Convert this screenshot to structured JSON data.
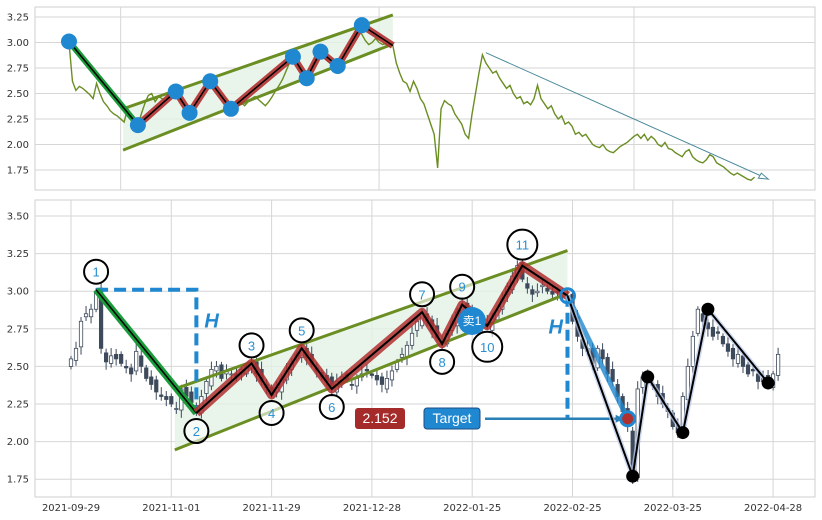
{
  "chart_data": [
    {
      "panel": "overview",
      "type": "line",
      "yticks": [
        1.75,
        2.0,
        2.25,
        2.5,
        2.75,
        3.0,
        3.25
      ],
      "ylim": [
        1.55,
        3.35
      ],
      "series_color": "#6b8e23",
      "pivot_color": "#1f88d0"
    },
    {
      "panel": "detail",
      "type": "candlestick",
      "yticks": [
        1.75,
        2.0,
        2.25,
        2.5,
        2.75,
        3.0,
        3.25,
        3.5
      ],
      "ylim": [
        1.65,
        3.6
      ],
      "xticks": [
        {
          "i": 0,
          "label": "2021-09-29"
        },
        {
          "i": 20,
          "label": "2021-11-01"
        },
        {
          "i": 40,
          "label": "2021-11-29"
        },
        {
          "i": 60,
          "label": "2021-12-28"
        },
        {
          "i": 80,
          "label": "2022-01-25"
        },
        {
          "i": 100,
          "label": "2022-02-25"
        },
        {
          "i": 120,
          "label": "2022-03-25"
        },
        {
          "i": 140,
          "label": "2022-04-28"
        }
      ],
      "candle_last_index": 141,
      "target_label": "Target",
      "target_value": "2.152",
      "sell_label": "卖1",
      "height_label": "H",
      "colors": {
        "down": "#3d4a5c",
        "up": "#ffffff",
        "channel": "#6b8e23",
        "zigzag": "#b03030",
        "impulse": "#1a9c3a",
        "accent": "#1f88d0",
        "value_box": "#a52a2a"
      }
    }
  ],
  "closes": [
    2.55,
    2.62,
    2.8,
    2.85,
    2.88,
    3.0,
    2.62,
    2.53,
    2.57,
    2.55,
    2.52,
    2.49,
    2.45,
    2.6,
    2.5,
    2.42,
    2.38,
    2.33,
    2.3,
    2.28,
    2.25,
    2.22,
    2.35,
    2.3,
    2.26,
    2.19,
    2.3,
    2.4,
    2.48,
    2.5,
    2.42,
    2.47,
    2.45,
    2.43,
    2.48,
    2.5,
    2.52,
    2.45,
    2.4,
    2.36,
    2.31,
    2.36,
    2.42,
    2.47,
    2.52,
    2.58,
    2.62,
    2.56,
    2.52,
    2.47,
    2.43,
    2.4,
    2.35,
    2.4,
    2.43,
    2.41,
    2.38,
    2.42,
    2.45,
    2.47,
    2.44,
    2.41,
    2.38,
    2.42,
    2.47,
    2.53,
    2.58,
    2.64,
    2.72,
    2.8,
    2.86,
    2.8,
    2.74,
    2.69,
    2.65,
    2.72,
    2.8,
    2.86,
    2.91,
    2.86,
    2.82,
    2.79,
    2.77,
    2.77,
    2.82,
    2.87,
    2.95,
    3.03,
    3.1,
    3.17,
    3.08,
    3.02,
    2.98,
    3.0,
    3.04,
    3.0,
    2.98,
    2.99,
    2.97,
    2.97,
    2.8,
    2.7,
    2.62,
    2.6,
    2.52,
    2.62,
    2.55,
    2.45,
    2.4,
    2.3,
    2.2,
    2.1,
    1.77,
    2.35,
    2.43,
    2.4,
    2.38,
    2.3,
    2.25,
    2.2,
    2.1,
    2.06,
    2.3,
    2.5,
    2.7,
    2.88,
    2.8,
    2.75,
    2.7,
    2.72,
    2.65,
    2.6,
    2.55,
    2.58,
    2.5,
    2.45,
    2.47,
    2.4,
    2.42,
    2.39,
    2.45,
    2.58,
    2.45,
    2.4,
    2.35,
    2.38,
    2.3,
    2.25,
    2.28,
    2.2,
    2.22,
    2.18,
    2.1,
    2.12,
    2.08,
    2.1,
    2.05,
    2.0,
    1.98,
    1.97,
    2.0,
    1.95,
    1.93,
    1.92,
    1.95,
    1.98,
    2.0,
    2.02,
    2.05,
    2.08,
    2.1,
    2.06,
    2.1,
    2.04,
    2.08,
    2.05,
    2.0,
    1.98,
    2.02,
    1.96,
    1.95,
    1.92,
    1.9,
    1.88,
    1.93,
    1.95,
    1.88,
    1.85,
    1.83,
    1.82,
    1.85,
    1.9,
    1.88,
    1.82,
    1.8,
    1.78,
    1.75,
    1.72,
    1.7,
    1.72,
    1.7,
    1.68,
    1.66,
    1.65,
    1.68
  ],
  "pivots": [
    {
      "label": "1",
      "i": 5,
      "v": 3.01,
      "pos": "above"
    },
    {
      "label": "2",
      "i": 25,
      "v": 2.19,
      "pos": "below"
    },
    {
      "label": "3",
      "i": 36,
      "v": 2.52,
      "pos": "above"
    },
    {
      "label": "4",
      "i": 40,
      "v": 2.31,
      "pos": "below"
    },
    {
      "label": "5",
      "i": 46,
      "v": 2.62,
      "pos": "above"
    },
    {
      "label": "6",
      "i": 52,
      "v": 2.35,
      "pos": "below"
    },
    {
      "label": "7",
      "i": 70,
      "v": 2.86,
      "pos": "above"
    },
    {
      "label": "8",
      "i": 74,
      "v": 2.65,
      "pos": "below"
    },
    {
      "label": "9",
      "i": 78,
      "v": 2.91,
      "pos": "above"
    },
    {
      "label": "10",
      "i": 83,
      "v": 2.77,
      "pos": "below"
    },
    {
      "label": "11",
      "i": 90,
      "v": 3.17,
      "pos": "above"
    }
  ],
  "breakout": {
    "i": 99,
    "v": 2.97
  },
  "target_point": {
    "i": 111,
    "v": 2.152
  },
  "post_pivots": [
    {
      "i": 112,
      "v": 1.77
    },
    {
      "i": 115,
      "v": 2.43
    },
    {
      "i": 122,
      "v": 2.06
    },
    {
      "i": 127,
      "v": 2.88
    },
    {
      "i": 139,
      "v": 2.39
    }
  ],
  "channel": {
    "upper": [
      {
        "i": 20.7,
        "v": 2.35
      },
      {
        "i": 99,
        "v": 3.27
      }
    ],
    "lower": [
      {
        "i": 20.7,
        "v": 1.945
      },
      {
        "i": 99,
        "v": 2.985
      }
    ]
  },
  "overview_trendline": [
    {
      "i": 126,
      "v": 2.9
    },
    {
      "i": 208,
      "v": 1.66
    }
  ]
}
